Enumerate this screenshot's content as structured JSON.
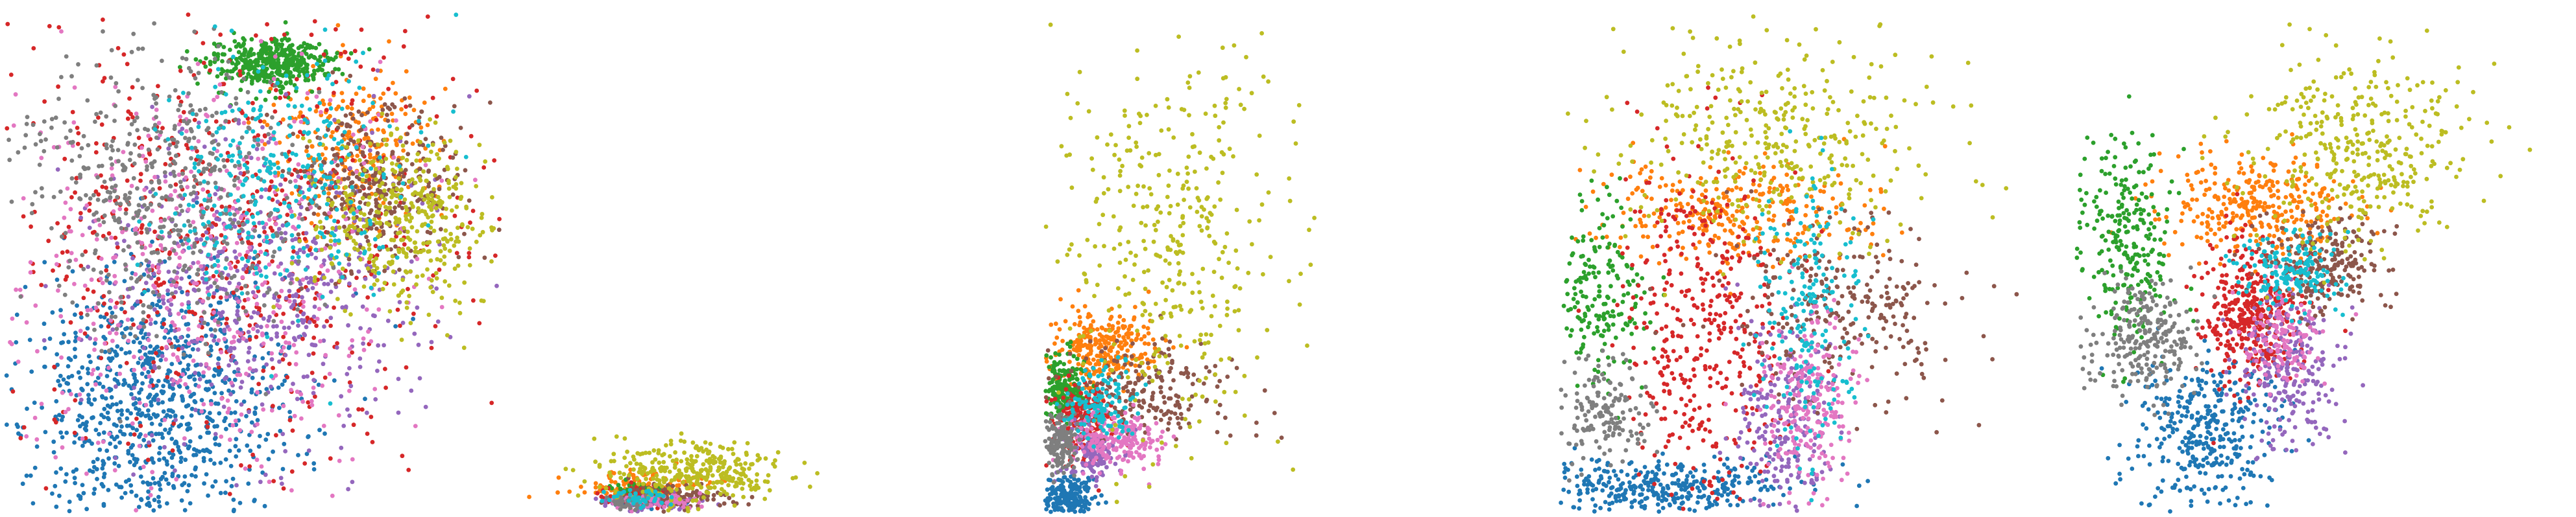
{
  "chart_data": [
    {
      "type": "scatter",
      "axes": "hidden",
      "grid": false,
      "legend": "none",
      "x_range": [
        0,
        100
      ],
      "y_range": [
        0,
        100
      ],
      "class_colors": [
        "#1f77b4",
        "#ff7f0e",
        "#2ca02c",
        "#d62728",
        "#9467bd",
        "#8c564b",
        "#e377c2",
        "#7f7f7f",
        "#bcbd22",
        "#17becf"
      ],
      "series": [
        {
          "color": "#1f77b4",
          "cx": 30,
          "cy": 22,
          "sx": 14,
          "sy": 14,
          "r": 1,
          "count": 900
        },
        {
          "color": "#ff7f0e",
          "cx": 70,
          "cy": 74,
          "sx": 8,
          "sy": 8,
          "r": 1,
          "count": 260
        },
        {
          "color": "#2ca02c",
          "cx": 54,
          "cy": 90,
          "sx": 6,
          "sy": 2.5,
          "r": 1,
          "count": 420
        },
        {
          "color": "#d62728",
          "cx": 44,
          "cy": 58,
          "sx": 26,
          "sy": 26,
          "r": 1,
          "count": 700
        },
        {
          "color": "#9467bd",
          "cx": 52,
          "cy": 45,
          "sx": 16,
          "sy": 16,
          "r": 1,
          "count": 520
        },
        {
          "color": "#8c564b",
          "cx": 75,
          "cy": 66,
          "sx": 8,
          "sy": 8,
          "r": 1,
          "count": 320
        },
        {
          "color": "#e377c2",
          "cx": 40,
          "cy": 46,
          "sx": 20,
          "sy": 20,
          "r": 1,
          "count": 520
        },
        {
          "color": "#7f7f7f",
          "cx": 33,
          "cy": 64,
          "sx": 14,
          "sy": 14,
          "r": 1,
          "count": 520
        },
        {
          "color": "#bcbd22",
          "cx": 80,
          "cy": 58,
          "sx": 9,
          "sy": 9,
          "r": 1,
          "count": 400
        },
        {
          "color": "#17becf",
          "cx": 56,
          "cy": 66,
          "sx": 12,
          "sy": 12,
          "r": 1,
          "count": 320
        }
      ]
    },
    {
      "type": "scatter",
      "axes": "hidden",
      "grid": false,
      "legend": "none",
      "x_range": [
        0,
        100
      ],
      "y_range": [
        0,
        100
      ],
      "series": [
        {
          "color": "#1f77b4",
          "cx": 22,
          "cy": 2,
          "sx": 3,
          "sy": 0.6,
          "r": 0.05,
          "count": 40
        },
        {
          "color": "#ff7f0e",
          "cx": 23,
          "cy": 5,
          "sx": 6,
          "sy": 1.5,
          "r": 0.05,
          "count": 160
        },
        {
          "color": "#2ca02c",
          "cx": 22,
          "cy": 4,
          "sx": 3,
          "sy": 1,
          "r": 0.05,
          "count": 60
        },
        {
          "color": "#d62728",
          "cx": 23,
          "cy": 3,
          "sx": 4,
          "sy": 1,
          "r": 0.05,
          "count": 60
        },
        {
          "color": "#9467bd",
          "cx": 25,
          "cy": 2,
          "sx": 5,
          "sy": 0.8,
          "r": 0.05,
          "count": 80
        },
        {
          "color": "#8c564b",
          "cx": 28,
          "cy": 3,
          "sx": 6,
          "sy": 1.2,
          "r": 0.05,
          "count": 120
        },
        {
          "color": "#e377c2",
          "cx": 26,
          "cy": 2,
          "sx": 5,
          "sy": 0.8,
          "r": 0.05,
          "count": 60
        },
        {
          "color": "#7f7f7f",
          "cx": 20,
          "cy": 2,
          "sx": 2,
          "sy": 0.8,
          "r": 0.05,
          "count": 40
        },
        {
          "color": "#bcbd22",
          "cx": 32,
          "cy": 8,
          "sx": 9,
          "sy": 3,
          "r": 0.05,
          "count": 320
        },
        {
          "color": "#17becf",
          "cx": 22,
          "cy": 3,
          "sx": 3,
          "sy": 1,
          "r": 0.05,
          "count": 40
        }
      ]
    },
    {
      "type": "scatter",
      "axes": "hidden",
      "grid": false,
      "legend": "none",
      "x_range": [
        0,
        100
      ],
      "y_range": [
        0,
        100
      ],
      "series": [
        {
          "color": "#1f77b4",
          "cx": 5,
          "cy": 3,
          "sx": 2.5,
          "sy": 2,
          "r": 0.05,
          "count": 220
        },
        {
          "color": "#ff7f0e",
          "cx": 12,
          "cy": 33,
          "sx": 5,
          "sy": 4,
          "r": 0.05,
          "count": 280
        },
        {
          "color": "#2ca02c",
          "cx": 4,
          "cy": 25,
          "sx": 2,
          "sy": 3,
          "r": 0.05,
          "count": 220
        },
        {
          "color": "#d62728",
          "cx": 8,
          "cy": 18,
          "sx": 3,
          "sy": 4,
          "r": 0.05,
          "count": 200
        },
        {
          "color": "#9467bd",
          "cx": 10,
          "cy": 12,
          "sx": 3,
          "sy": 3,
          "r": 0.05,
          "count": 140
        },
        {
          "color": "#8c564b",
          "cx": 22,
          "cy": 24,
          "sx": 9,
          "sy": 5,
          "r": 0.05,
          "count": 200
        },
        {
          "color": "#e377c2",
          "cx": 15,
          "cy": 14,
          "sx": 5,
          "sy": 3,
          "r": 0.05,
          "count": 200
        },
        {
          "color": "#7f7f7f",
          "cx": 3,
          "cy": 14,
          "sx": 1.5,
          "sy": 3,
          "r": 0.05,
          "count": 160
        },
        {
          "color": "#bcbd22",
          "cx": 25,
          "cy": 55,
          "sx": 12,
          "sy": 20,
          "r": 0.05,
          "count": 380
        },
        {
          "color": "#17becf",
          "cx": 11,
          "cy": 22,
          "sx": 4,
          "sy": 4,
          "r": 0.05,
          "count": 120
        }
      ]
    },
    {
      "type": "scatter",
      "axes": "hidden",
      "grid": false,
      "legend": "none",
      "x_range": [
        0,
        100
      ],
      "y_range": [
        0,
        100
      ],
      "series": [
        {
          "color": "#1f77b4",
          "cx": 20,
          "cy": 5,
          "sx": 14,
          "sy": 3,
          "r": 0.05,
          "count": 360
        },
        {
          "color": "#ff7f0e",
          "cx": 35,
          "cy": 60,
          "sx": 14,
          "sy": 5,
          "r": 0.05,
          "count": 300
        },
        {
          "color": "#2ca02c",
          "cx": 8,
          "cy": 45,
          "sx": 5,
          "sy": 10,
          "r": 0.05,
          "count": 200
        },
        {
          "color": "#d62728",
          "cx": 30,
          "cy": 35,
          "sx": 9,
          "sy": 18,
          "r": 0.05,
          "count": 400
        },
        {
          "color": "#9467bd",
          "cx": 45,
          "cy": 18,
          "sx": 5,
          "sy": 10,
          "r": 0.05,
          "count": 220
        },
        {
          "color": "#8c564b",
          "cx": 58,
          "cy": 40,
          "sx": 12,
          "sy": 10,
          "r": 0.05,
          "count": 260
        },
        {
          "color": "#e377c2",
          "cx": 50,
          "cy": 22,
          "sx": 5,
          "sy": 10,
          "r": 0.05,
          "count": 240
        },
        {
          "color": "#7f7f7f",
          "cx": 8,
          "cy": 20,
          "sx": 5,
          "sy": 5,
          "r": 0.05,
          "count": 160
        },
        {
          "color": "#bcbd22",
          "cx": 45,
          "cy": 75,
          "sx": 16,
          "sy": 10,
          "r": 0.05,
          "count": 360
        },
        {
          "color": "#17becf",
          "cx": 50,
          "cy": 42,
          "sx": 5,
          "sy": 14,
          "r": 0.05,
          "count": 200
        }
      ]
    },
    {
      "type": "scatter",
      "axes": "hidden",
      "grid": false,
      "legend": "none",
      "x_range": [
        0,
        100
      ],
      "y_range": [
        0,
        100
      ],
      "series": [
        {
          "color": "#1f77b4",
          "cx": 27,
          "cy": 15,
          "sx": 8,
          "sy": 8,
          "r": 0.05,
          "count": 360
        },
        {
          "color": "#ff7f0e",
          "cx": 38,
          "cy": 62,
          "sx": 10,
          "sy": 5,
          "r": 0.05,
          "count": 320
        },
        {
          "color": "#2ca02c",
          "cx": 10,
          "cy": 55,
          "sx": 5,
          "sy": 10,
          "r": 0.05,
          "count": 260
        },
        {
          "color": "#d62728",
          "cx": 36,
          "cy": 40,
          "sx": 5,
          "sy": 7,
          "r": 0.05,
          "count": 380
        },
        {
          "color": "#9467bd",
          "cx": 43,
          "cy": 28,
          "sx": 5,
          "sy": 8,
          "r": 0.05,
          "count": 240
        },
        {
          "color": "#8c564b",
          "cx": 50,
          "cy": 50,
          "sx": 6,
          "sy": 5,
          "r": 0.05,
          "count": 240
        },
        {
          "color": "#e377c2",
          "cx": 42,
          "cy": 34,
          "sx": 4,
          "sy": 5,
          "r": 0.05,
          "count": 120
        },
        {
          "color": "#7f7f7f",
          "cx": 14,
          "cy": 35,
          "sx": 5,
          "sy": 6,
          "r": 0.05,
          "count": 240
        },
        {
          "color": "#bcbd22",
          "cx": 58,
          "cy": 72,
          "sx": 12,
          "sy": 10,
          "r": 0.05,
          "count": 360
        },
        {
          "color": "#17becf",
          "cx": 44,
          "cy": 48,
          "sx": 5,
          "sy": 4,
          "r": 0.05,
          "count": 160
        }
      ]
    }
  ]
}
